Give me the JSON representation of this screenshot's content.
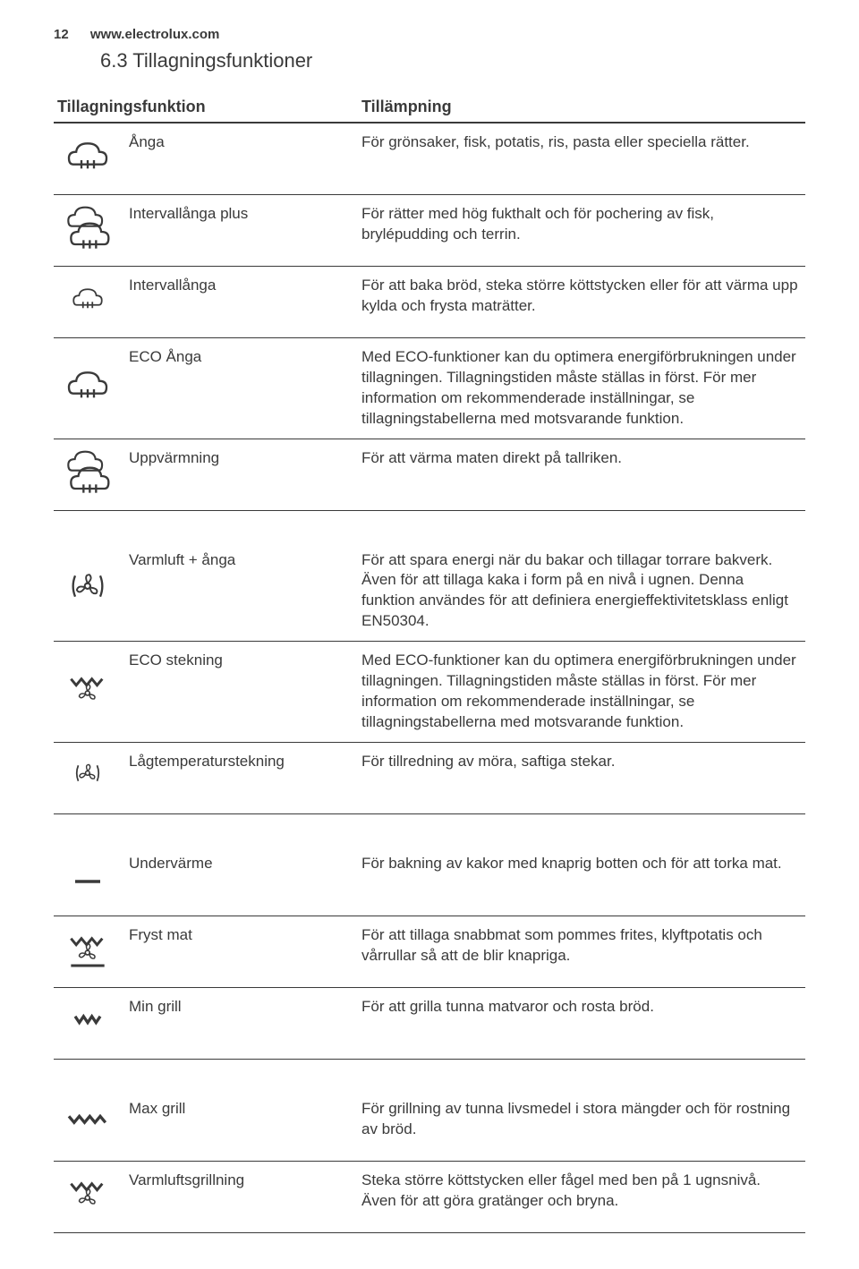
{
  "header": {
    "page_number": "12",
    "site": "www.electrolux.com"
  },
  "section_title": "6.3 Tillagningsfunktioner",
  "table": {
    "head_function": "Tillagningsfunktion",
    "head_application": "Tillämpning",
    "groups": [
      {
        "rows": [
          {
            "icon": "steam",
            "name": "Ånga",
            "desc": "För grönsaker, fisk, potatis, ris, pasta eller speciella rätter."
          },
          {
            "icon": "steam-plus",
            "name": "Intervallånga plus",
            "desc": "För rätter med hög fukthalt och för pochering av fisk, brylépudding och terrin."
          },
          {
            "icon": "steam-small",
            "name": "Intervallånga",
            "desc": "För att baka bröd, steka större köttstycken eller för att värma upp kylda och frysta maträtter."
          },
          {
            "icon": "steam",
            "name": "ECO Ånga",
            "desc": "Med ECO-funktioner kan du optimera energiförbrukningen under tillagningen. Tillagningstiden måste ställas in först. För mer information om rekommenderade inställningar, se tillagningstabellerna med motsvarande funktion."
          },
          {
            "icon": "steam-plus",
            "name": "Uppvärmning",
            "desc": "För att värma maten direkt på tallriken."
          }
        ]
      },
      {
        "rows": [
          {
            "icon": "fan-brackets",
            "name": "Varmluft + ånga",
            "desc": "För att spara energi när du bakar och tillagar torrare bakverk. Även för att tillaga kaka i form på en nivå i ugnen. Denna funktion användes för att definiera energieffektivitetsklass enligt EN50304."
          },
          {
            "icon": "grill-fan",
            "name": "ECO stekning",
            "desc": "Med ECO-funktioner kan du optimera energiförbrukningen under tillagningen. Tillagningstiden måste ställas in först. För mer information om rekommenderade inställningar, se tillagningstabellerna med motsvarande funktion."
          },
          {
            "icon": "fan-brackets-small",
            "name": "Lågtemperaturstekning",
            "desc": "För tillredning av möra, saftiga stekar."
          }
        ]
      },
      {
        "rows": [
          {
            "icon": "bottom-heat",
            "name": "Undervärme",
            "desc": "För bakning av kakor med knaprig botten och för att torka mat."
          },
          {
            "icon": "grill-fan-line",
            "name": "Fryst mat",
            "desc": "För att tillaga snabbmat som pommes frites, klyftpotatis och vårrullar så att de blir knapriga."
          },
          {
            "icon": "min-grill",
            "name": "Min grill",
            "desc": "För att grilla tunna matvaror och rosta bröd."
          }
        ]
      },
      {
        "rows": [
          {
            "icon": "max-grill",
            "name": "Max grill",
            "desc": "För grillning av tunna livsmedel i stora mängder och för rostning av bröd."
          },
          {
            "icon": "grill-fan",
            "name": "Varmluftsgrillning",
            "desc": "Steka större köttstycken eller fågel med ben på 1 ugnsnivå. Även för att göra gratänger och bryna."
          }
        ]
      }
    ]
  },
  "style": {
    "text_color": "#3a3a3a",
    "icon_stroke": "#3a3a3a",
    "background": "#ffffff",
    "font_family": "Arial",
    "heading_fontsize_pt": 16,
    "cell_fontsize_pt": 13
  }
}
